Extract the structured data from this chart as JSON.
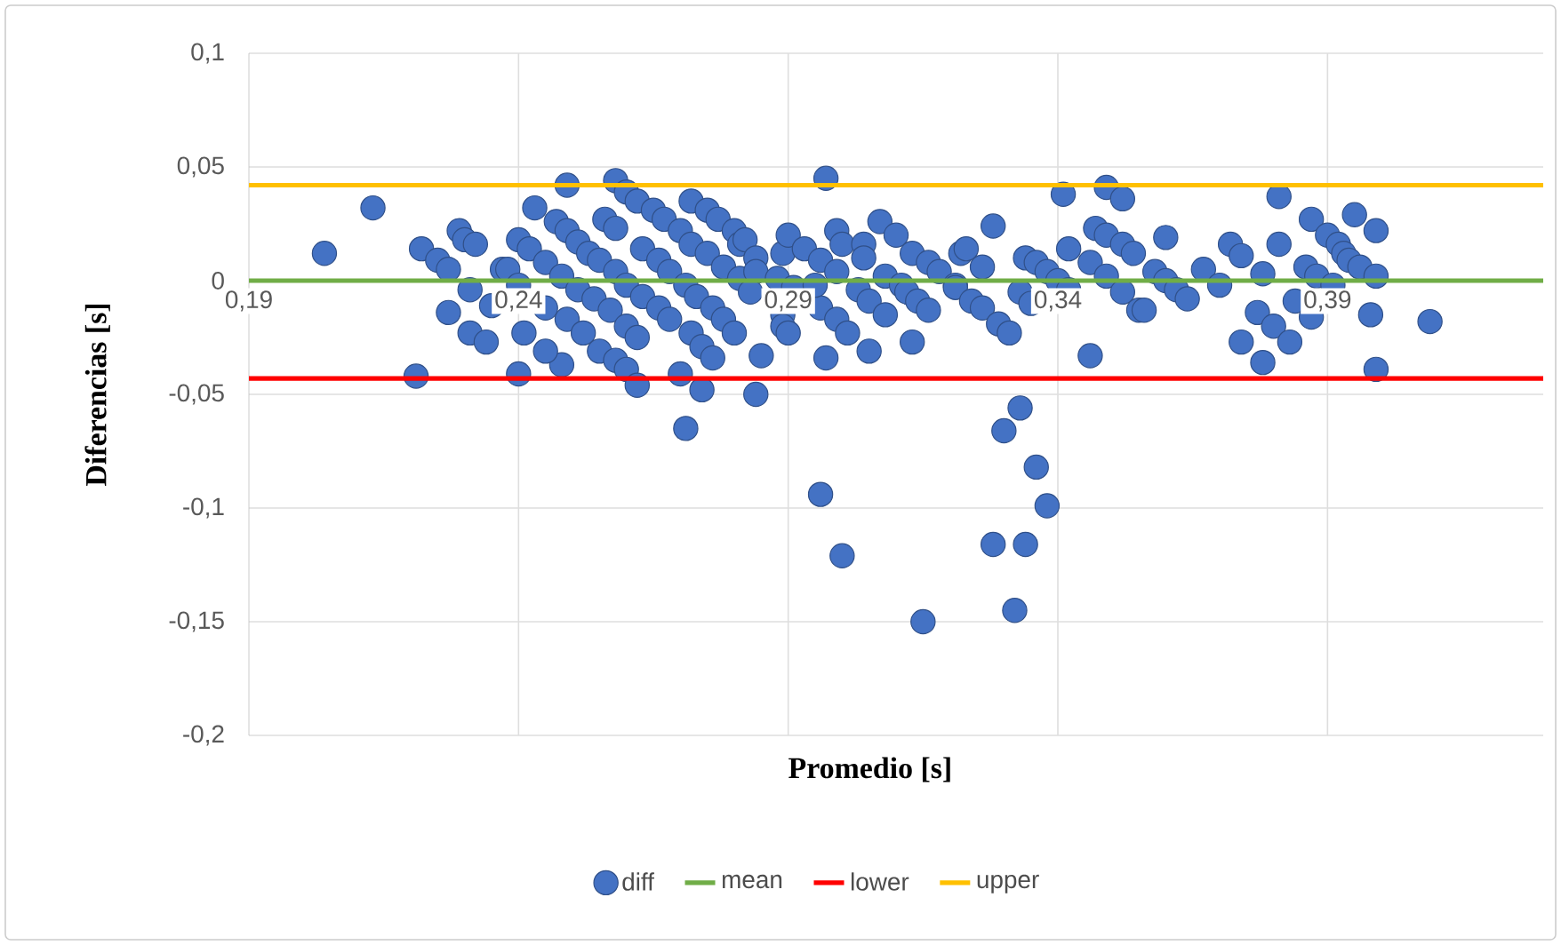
{
  "chart_data": {
    "type": "scatter",
    "xlabel": "Promedio [s]",
    "ylabel": "Diferencias [s]",
    "xlim": [
      0.19,
      0.43
    ],
    "ylim": [
      -0.2,
      0.1
    ],
    "xticks": [
      {
        "value": 0.19,
        "label": "0,19"
      },
      {
        "value": 0.24,
        "label": "0,24"
      },
      {
        "value": 0.29,
        "label": "0,29"
      },
      {
        "value": 0.34,
        "label": "0,34"
      },
      {
        "value": 0.39,
        "label": "0,39"
      }
    ],
    "yticks": [
      {
        "value": -0.2,
        "label": "-0,2"
      },
      {
        "value": -0.15,
        "label": "-0,15"
      },
      {
        "value": -0.1,
        "label": "-0,1"
      },
      {
        "value": -0.05,
        "label": "-0,05"
      },
      0,
      {
        "value": 0.05,
        "label": "0,05"
      },
      {
        "value": 0.1,
        "label": "0,1"
      }
    ],
    "grid": true,
    "legend": "bottom",
    "marker": "circle",
    "series": [
      {
        "name": "diff",
        "color": "#4472c4",
        "x": [
          0.204,
          0.213,
          0.221,
          0.222,
          0.225,
          0.227,
          0.227,
          0.229,
          0.23,
          0.232,
          0.231,
          0.231,
          0.234,
          0.235,
          0.237,
          0.24,
          0.249,
          0.258,
          0.26,
          0.243,
          0.248,
          0.245,
          0.241,
          0.238,
          0.24,
          0.245,
          0.249,
          0.252,
          0.255,
          0.258,
          0.26,
          0.262,
          0.24,
          0.242,
          0.245,
          0.248,
          0.251,
          0.254,
          0.257,
          0.26,
          0.262,
          0.247,
          0.249,
          0.251,
          0.253,
          0.255,
          0.258,
          0.26,
          0.263,
          0.266,
          0.268,
          0.272,
          0.274,
          0.276,
          0.256,
          0.258,
          0.263,
          0.266,
          0.268,
          0.271,
          0.273,
          0.276,
          0.278,
          0.28,
          0.262,
          0.265,
          0.267,
          0.27,
          0.272,
          0.275,
          0.278,
          0.281,
          0.272,
          0.275,
          0.277,
          0.28,
          0.281,
          0.27,
          0.271,
          0.274,
          0.284,
          0.296,
          0.3,
          0.315,
          0.297,
          0.297,
          0.285,
          0.305,
          0.313,
          0.282,
          0.284,
          0.289,
          0.29,
          0.293,
          0.296,
          0.299,
          0.3,
          0.304,
          0.304,
          0.284,
          0.288,
          0.291,
          0.296,
          0.299,
          0.301,
          0.283,
          0.289,
          0.295,
          0.299,
          0.303,
          0.305,
          0.308,
          0.289,
          0.29,
          0.307,
          0.31,
          0.313,
          0.316,
          0.318,
          0.321,
          0.308,
          0.311,
          0.312,
          0.314,
          0.316,
          0.322,
          0.333,
          0.33,
          0.336,
          0.338,
          0.328,
          0.334,
          0.332,
          0.328,
          0.323,
          0.326,
          0.341,
          0.349,
          0.352,
          0.346,
          0.342,
          0.321,
          0.324,
          0.326,
          0.329,
          0.331,
          0.334,
          0.336,
          0.338,
          0.34,
          0.342,
          0.333,
          0.335,
          0.347,
          0.349,
          0.352,
          0.354,
          0.346,
          0.349,
          0.352,
          0.355,
          0.381,
          0.36,
          0.372,
          0.374,
          0.381,
          0.367,
          0.37,
          0.378,
          0.358,
          0.36,
          0.362,
          0.364,
          0.356,
          0.377,
          0.38,
          0.374,
          0.378,
          0.383,
          0.384,
          0.387,
          0.387,
          0.39,
          0.392,
          0.393,
          0.386,
          0.388,
          0.391,
          0.395,
          0.399,
          0.394,
          0.396,
          0.399,
          0.398,
          0.409,
          0.399
        ],
        "values": [
          0.012,
          0.032,
          -0.042,
          0.014,
          0.009,
          0.005,
          -0.014,
          0.022,
          0.018,
          0.016,
          -0.004,
          -0.023,
          -0.027,
          -0.011,
          0.005,
          -0.041,
          0.042,
          0.044,
          0.039,
          0.032,
          -0.037,
          -0.031,
          -0.023,
          0.005,
          -0.002,
          -0.012,
          -0.017,
          -0.023,
          -0.031,
          -0.035,
          -0.039,
          -0.046,
          0.018,
          0.014,
          0.008,
          0.002,
          -0.004,
          -0.008,
          -0.013,
          -0.02,
          -0.025,
          0.026,
          0.022,
          0.017,
          0.012,
          0.009,
          0.004,
          -0.002,
          -0.007,
          -0.012,
          -0.017,
          -0.023,
          -0.029,
          -0.034,
          0.027,
          0.023,
          0.014,
          0.009,
          0.004,
          -0.002,
          -0.007,
          -0.012,
          -0.017,
          -0.023,
          0.035,
          0.031,
          0.027,
          0.022,
          0.016,
          0.012,
          0.006,
          0.001,
          0.035,
          0.031,
          0.027,
          0.022,
          0.016,
          -0.041,
          -0.065,
          -0.048,
          -0.05,
          -0.094,
          -0.121,
          -0.15,
          0.045,
          -0.034,
          -0.033,
          -0.031,
          -0.027,
          0.018,
          0.01,
          0.012,
          0.02,
          0.014,
          0.009,
          0.022,
          0.016,
          0.016,
          0.01,
          0.004,
          0.001,
          -0.003,
          -0.012,
          -0.017,
          -0.023,
          -0.005,
          -0.015,
          -0.002,
          0.004,
          -0.004,
          -0.009,
          -0.015,
          -0.02,
          -0.023,
          0.026,
          0.02,
          0.012,
          0.008,
          0.004,
          -0.002,
          0.002,
          -0.002,
          -0.005,
          -0.009,
          -0.013,
          0.012,
          -0.056,
          -0.066,
          -0.082,
          -0.099,
          -0.116,
          -0.116,
          -0.145,
          0.024,
          0.014,
          0.006,
          0.038,
          0.041,
          0.036,
          -0.033,
          0.014,
          -0.003,
          -0.009,
          -0.012,
          -0.019,
          -0.023,
          0.01,
          0.008,
          0.004,
          0.0,
          -0.004,
          -0.005,
          -0.01,
          0.023,
          0.02,
          0.016,
          0.012,
          0.008,
          0.002,
          -0.005,
          -0.013,
          0.037,
          0.019,
          0.016,
          0.011,
          0.016,
          0.005,
          -0.002,
          0.003,
          0.004,
          0.0,
          -0.004,
          -0.008,
          -0.013,
          -0.014,
          -0.02,
          -0.027,
          -0.036,
          -0.027,
          -0.009,
          -0.016,
          0.027,
          0.02,
          0.016,
          0.012,
          0.006,
          0.002,
          -0.002,
          0.029,
          0.022,
          0.009,
          0.006,
          0.002,
          -0.015,
          -0.018,
          -0.039
        ]
      },
      {
        "name": "mean",
        "type": "line",
        "marker": "none",
        "color": "#70ad47",
        "x": [
          0.19,
          0.43
        ],
        "values": [
          0,
          0
        ]
      },
      {
        "name": "lower",
        "type": "line",
        "marker": "none",
        "color": "#ff0000",
        "x": [
          0.19,
          0.43
        ],
        "values": [
          -0.043,
          -0.043
        ]
      },
      {
        "name": "upper",
        "type": "line",
        "marker": "none",
        "color": "#ffc000",
        "x": [
          0.19,
          0.43
        ],
        "values": [
          0.042,
          0.042
        ]
      }
    ]
  }
}
